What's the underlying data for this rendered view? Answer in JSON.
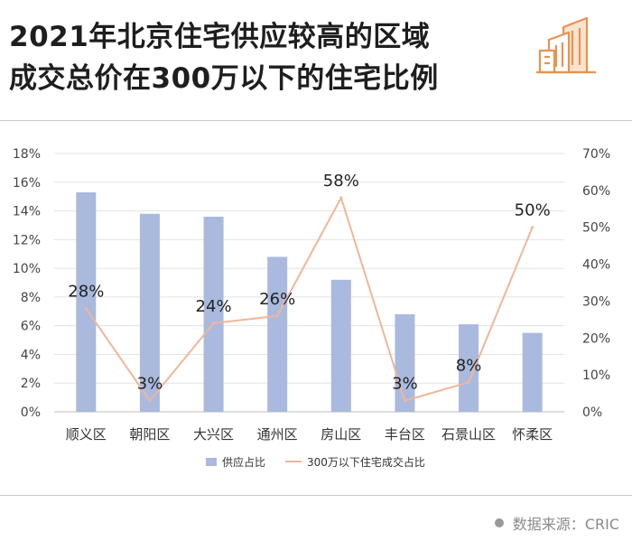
{
  "title": {
    "line1": "2021年北京住宅供应较高的区域",
    "line2": "成交总价在300万以下的住宅比例"
  },
  "logo_icon": "buildings-icon",
  "source": {
    "label": "数据来源：",
    "value": "CRIC",
    "icon": "bullet-dot-icon"
  },
  "colors": {
    "bar": "#a9bade",
    "line": "#f0b69a",
    "logo": "#e8934f",
    "grid": "#e3e3e3"
  },
  "chart_data": {
    "type": "bar+line",
    "categories": [
      "顺义区",
      "朝阳区",
      "大兴区",
      "通州区",
      "房山区",
      "丰台区",
      "石景山区",
      "怀柔区"
    ],
    "series": [
      {
        "name": "供应占比",
        "type": "bar",
        "axis": "left",
        "values": [
          15.3,
          13.8,
          13.6,
          10.8,
          9.2,
          6.8,
          6.1,
          5.5
        ]
      },
      {
        "name": "300万以下住宅成交占比",
        "type": "line",
        "axis": "right",
        "values": [
          28,
          3,
          24,
          26,
          58,
          3,
          8,
          50
        ],
        "labels": [
          "28%",
          "3%",
          "24%",
          "26%",
          "58%",
          "3%",
          "8%",
          "50%"
        ]
      }
    ],
    "y_left": {
      "min": 0,
      "max": 18,
      "ticks": [
        "0%",
        "2%",
        "4%",
        "6%",
        "8%",
        "10%",
        "12%",
        "14%",
        "16%",
        "18%"
      ]
    },
    "y_right": {
      "min": 0,
      "max": 70,
      "ticks": [
        "0%",
        "10%",
        "20%",
        "30%",
        "40%",
        "50%",
        "60%",
        "70%"
      ]
    },
    "grid": true,
    "legend_position": "bottom"
  }
}
